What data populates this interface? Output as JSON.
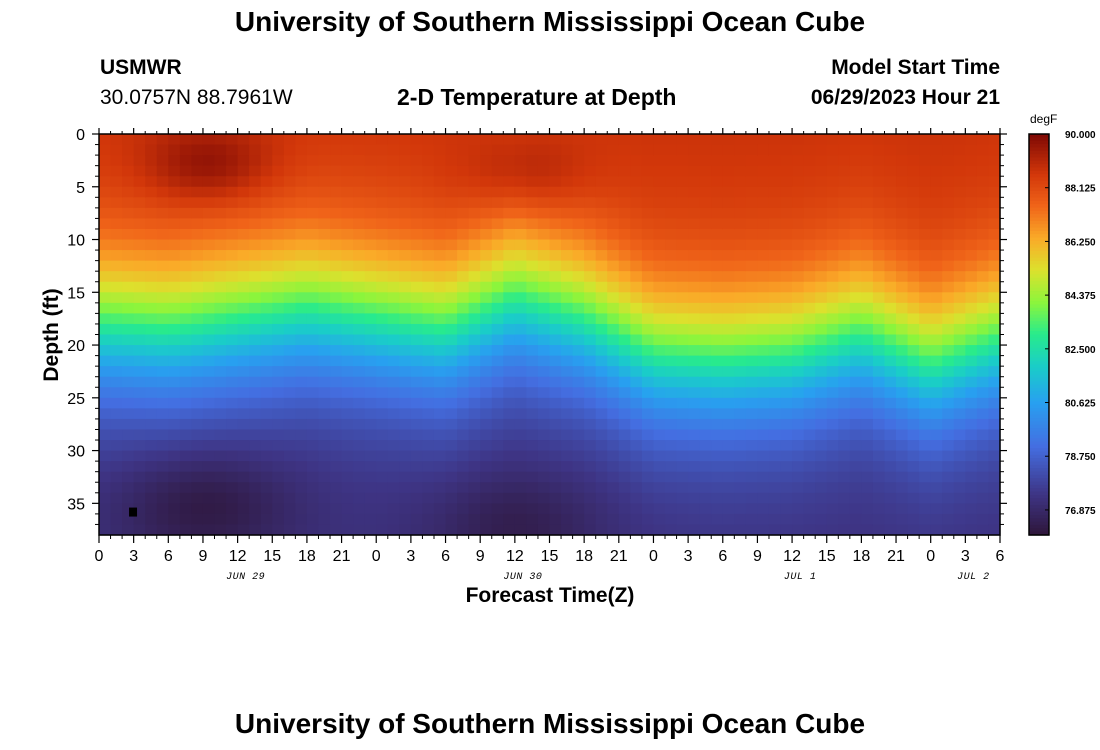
{
  "page": {
    "title": "University of Southern Mississippi Ocean Cube",
    "footer_title": "University of Southern Mississippi Ocean Cube"
  },
  "header": {
    "station": "USMWR",
    "coordinates": "30.0757N  88.7961W",
    "subtitle": "2-D Temperature at Depth",
    "model_label": "Model Start Time",
    "model_time": "06/29/2023 Hour 21"
  },
  "chart_data": {
    "type": "heatmap",
    "title": "2-D Temperature at Depth",
    "xlabel": "Forecast Time(Z)",
    "ylabel": "Depth (ft)",
    "x_start_hour_label": "0",
    "x_range_hours": [
      0,
      78
    ],
    "x_tick_labels": [
      "0",
      "3",
      "6",
      "9",
      "12",
      "15",
      "18",
      "21",
      "0",
      "3",
      "6",
      "9",
      "12",
      "15",
      "18",
      "21",
      "0",
      "3",
      "6",
      "9",
      "12",
      "15",
      "18",
      "21",
      "0",
      "3",
      "6"
    ],
    "date_labels": [
      {
        "text": "JUN 29",
        "hour": 12
      },
      {
        "text": "JUN 30",
        "hour": 36
      },
      {
        "text": "JUL 1",
        "hour": 60
      },
      {
        "text": "JUL 2",
        "hour": 75
      }
    ],
    "ylim": [
      0,
      38
    ],
    "y_ticks": [
      0,
      5,
      10,
      15,
      20,
      25,
      30,
      35
    ],
    "colorbar": {
      "unit": "degF",
      "min": 76.0,
      "max": 90.0,
      "tick_labels": [
        "90.000",
        "88.125",
        "86.250",
        "84.375",
        "82.500",
        "80.625",
        "78.750",
        "76.875"
      ],
      "tick_values": [
        90.0,
        88.125,
        86.25,
        84.375,
        82.5,
        80.625,
        78.75,
        76.875
      ]
    },
    "thermocline_depth_by_hour": {
      "hours": [
        0,
        6,
        12,
        18,
        24,
        30,
        36,
        42,
        48,
        54,
        60,
        66,
        72,
        78
      ],
      "depth_ft": [
        18,
        18.5,
        17.5,
        16.5,
        17.5,
        18.5,
        15.5,
        17.5,
        21,
        21.5,
        21,
        19,
        22,
        19.5
      ]
    },
    "warm_cores": [
      {
        "hour": 9.5,
        "depth_ft": 3,
        "temp": 90
      },
      {
        "hour": 37,
        "depth_ft": 4,
        "temp": 89.6
      }
    ],
    "cold_cores": [
      {
        "hour": 9,
        "depth_ft": 35,
        "temp": 76
      },
      {
        "hour": 36,
        "depth_ft": 37,
        "temp": 76.3
      }
    ],
    "surface_temp": 88.8,
    "bottom_temp": 77.2
  }
}
